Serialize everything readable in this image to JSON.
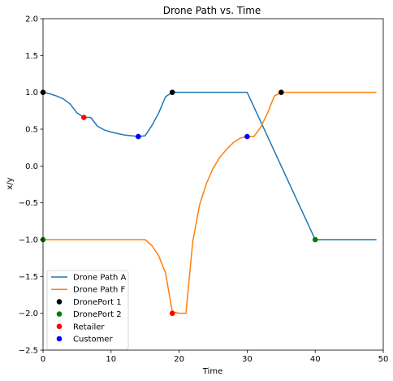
{
  "chart_data": {
    "type": "line",
    "title": "Drone Path vs. Time",
    "xlabel": "Time",
    "ylabel": "x/y",
    "xlim": [
      0,
      50
    ],
    "ylim": [
      -2.5,
      2.0
    ],
    "xticks": [
      0,
      10,
      20,
      30,
      40,
      50
    ],
    "yticks": [
      -2.5,
      -2.0,
      -1.5,
      -1.0,
      -0.5,
      0.0,
      0.5,
      1.0,
      1.5,
      2.0
    ],
    "xtick_labels": [
      "0",
      "10",
      "20",
      "30",
      "40",
      "50"
    ],
    "ytick_labels": [
      "−2.5",
      "−2.0",
      "−1.5",
      "−1.0",
      "−0.5",
      "0.0",
      "0.5",
      "1.0",
      "1.5",
      "2.0"
    ],
    "grid": false,
    "legend_position": "lower-left",
    "series": [
      {
        "name": "Drone Path A",
        "color": "#1f77b4",
        "x": [
          0,
          1,
          2,
          3,
          4,
          5,
          6,
          7,
          8,
          9,
          10,
          11,
          12,
          13,
          14,
          15,
          16,
          17,
          18,
          19,
          20,
          25,
          30,
          35,
          40,
          45,
          49
        ],
        "y": [
          1.0,
          0.98,
          0.95,
          0.91,
          0.84,
          0.72,
          0.66,
          0.66,
          0.54,
          0.49,
          0.46,
          0.44,
          0.42,
          0.41,
          0.4,
          0.41,
          0.55,
          0.72,
          0.94,
          1.0,
          1.0,
          1.0,
          1.0,
          0.0,
          -1.0,
          -1.0,
          -1.0
        ]
      },
      {
        "name": "Drone Path F",
        "color": "#ff7f0e",
        "x": [
          0,
          5,
          10,
          15,
          16,
          17,
          18,
          19,
          20,
          21,
          22,
          23,
          24,
          25,
          26,
          27,
          28,
          29,
          30,
          31,
          32,
          33,
          34,
          35,
          40,
          45,
          49
        ],
        "y": [
          -1.0,
          -1.0,
          -1.0,
          -1.0,
          -1.08,
          -1.22,
          -1.45,
          -1.98,
          -2.0,
          -2.0,
          -1.03,
          -0.53,
          -0.24,
          -0.03,
          0.12,
          0.23,
          0.32,
          0.38,
          0.4,
          0.4,
          0.53,
          0.72,
          0.95,
          1.0,
          1.0,
          1.0,
          1.0
        ]
      }
    ],
    "markers": [
      {
        "name": "DronePort 1",
        "color": "#000000",
        "points": [
          [
            0,
            1.0
          ],
          [
            19,
            1.0
          ],
          [
            35,
            1.0
          ]
        ]
      },
      {
        "name": "DronePort 2",
        "color": "#008000",
        "points": [
          [
            0,
            -1.0
          ],
          [
            40,
            -1.0
          ]
        ]
      },
      {
        "name": "Retailer",
        "color": "#ff0000",
        "points": [
          [
            6,
            0.66
          ],
          [
            19,
            -2.0
          ]
        ]
      },
      {
        "name": "Customer",
        "color": "#0000ff",
        "points": [
          [
            14,
            0.4
          ],
          [
            30,
            0.4
          ]
        ]
      }
    ]
  }
}
